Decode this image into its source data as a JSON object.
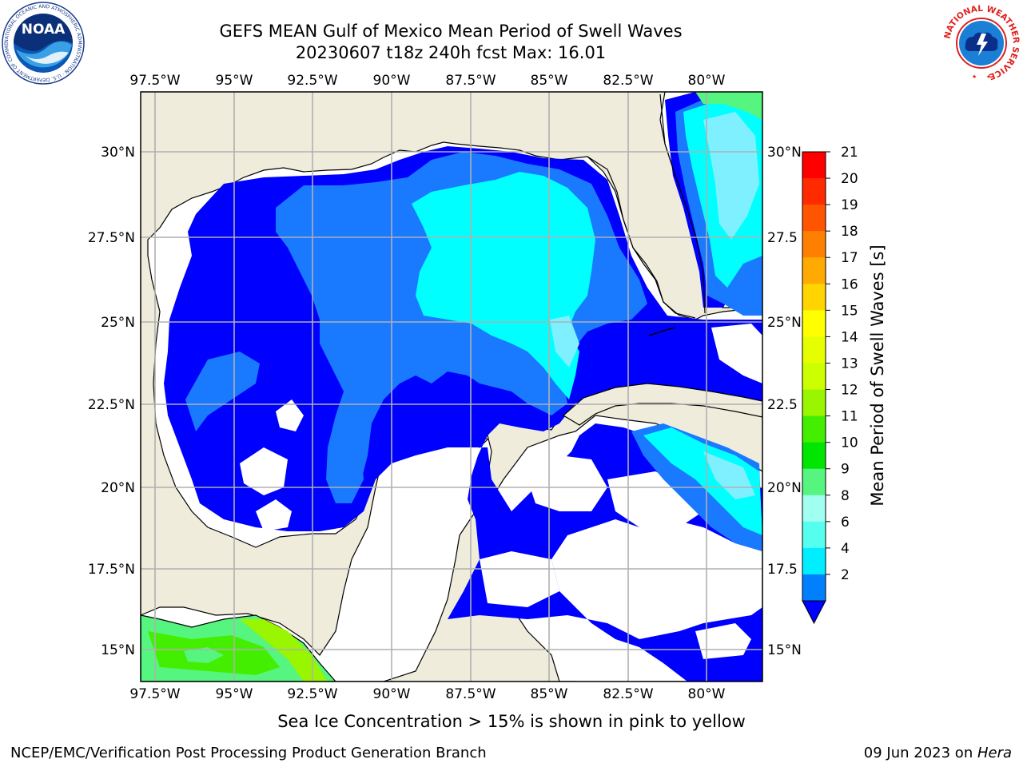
{
  "title_line1": "GEFS MEAN Gulf of Mexico Mean Period of Swell Waves",
  "title_line2": "20230607 t18z 240h fcst   Max: 16.01",
  "lon_labels": [
    "97.5°W",
    "95°W",
    "92.5°W",
    "90°W",
    "87.5°W",
    "85°W",
    "82.5°W",
    "80°W"
  ],
  "lat_labels_left": [
    "30°N",
    "27.5°N",
    "25°N",
    "22.5°N",
    "20°N",
    "17.5°N",
    "15°N"
  ],
  "lat_labels_right": [
    "30°N",
    "27.5",
    "25°N",
    "22.5",
    "20°N",
    "17.5",
    "15°N"
  ],
  "colorbar": {
    "label": "Mean Period of Swell Waves [s]",
    "ticks": [
      "21",
      "20",
      "19",
      "18",
      "17",
      "16",
      "15",
      "14",
      "13",
      "12",
      "11",
      "10",
      "9",
      "8",
      "6",
      "4",
      "2"
    ],
    "colors": [
      "#ff0000",
      "#ff2a00",
      "#ff5500",
      "#ff8000",
      "#ffaa00",
      "#ffd400",
      "#ffff00",
      "#e6ff00",
      "#ccff00",
      "#99f500",
      "#44ee00",
      "#00e600",
      "#55f57f",
      "#a0fff0",
      "#55ffee",
      "#00eeff",
      "#0080ff"
    ],
    "extend_color": "#0000ff"
  },
  "colors": {
    "land": "#efecdc",
    "ocean_white": "#ffffff",
    "blue": "#0000ff",
    "mid_blue": "#1a7aff",
    "light_blue": "#33a3ff",
    "cyan": "#00ffff",
    "light_cyan": "#7ff0ff",
    "green": "#55f57f",
    "lime": "#99f500",
    "grid": "#b0b0b0"
  },
  "logos": {
    "noaa_text": "NOAA",
    "noaa_ring_text": "NATIONAL OCEANIC AND ATMOSPHERIC ADMINISTRATION · U.S. DEPARTMENT OF COMMERCE",
    "nws_ring_text": "NATIONAL WEATHER SERVICE"
  },
  "note": "Sea Ice Concentration > 15% is shown in pink to yellow",
  "credit": "NCEP/EMC/Verification Post Processing Product Generation Branch",
  "date_prefix": "09 Jun 2023 on ",
  "date_host": "Hera"
}
